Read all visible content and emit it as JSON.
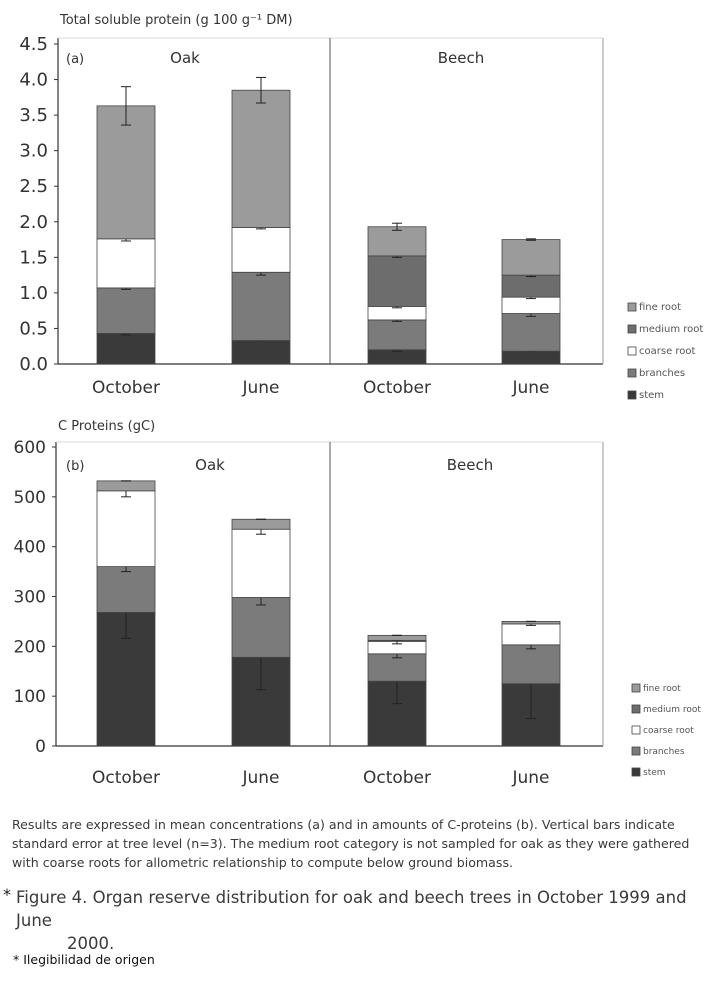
{
  "organs": {
    "fine_root": {
      "label": "fine root",
      "color": "#9b9b9b"
    },
    "medium_root": {
      "label": "medium root",
      "color": "#6d6d6d"
    },
    "coarse_root": {
      "label": "coarse root",
      "color": "#ffffff"
    },
    "branches": {
      "label": "branches",
      "color": "#7b7b7b"
    },
    "stem": {
      "label": "stem",
      "color": "#3a3a3a"
    }
  },
  "chart_data": [
    {
      "id": "a",
      "type": "bar",
      "stacked": true,
      "panel_label": "(a)",
      "title": "Total soluble protein (g 100 g⁻¹ DM)",
      "ylabel": "Total soluble protein (g 100 g⁻¹ DM)",
      "ylim": [
        0,
        4.5
      ],
      "yticks": [
        "0.0",
        "0.5",
        "1.0",
        "1.5",
        "2.0",
        "2.5",
        "3.0",
        "3.5",
        "4.0",
        "4.5"
      ],
      "groups": [
        {
          "species": "Oak",
          "categories": [
            "October",
            "June"
          ]
        },
        {
          "species": "Beech",
          "categories": [
            "October",
            "June"
          ]
        }
      ],
      "categories": [
        "Oak October",
        "Oak June",
        "Beech October",
        "Beech June"
      ],
      "category_labels": [
        "October",
        "June",
        "October",
        "June"
      ],
      "series": [
        {
          "name": "stem",
          "values": [
            0.43,
            0.33,
            0.2,
            0.18
          ],
          "errors": [
            0.02,
            0.0,
            0.02,
            0.0
          ]
        },
        {
          "name": "branches",
          "values": [
            0.64,
            0.96,
            0.42,
            0.53
          ],
          "errors": [
            0.02,
            0.04,
            0.02,
            0.04
          ]
        },
        {
          "name": "coarse root",
          "values": [
            0.69,
            0.63,
            0.19,
            0.23
          ],
          "errors": [
            0.03,
            0.02,
            0.02,
            0.02
          ]
        },
        {
          "name": "medium root",
          "values": [
            0.0,
            0.0,
            0.71,
            0.31
          ],
          "errors": [
            0.0,
            0.0,
            0.02,
            0.02
          ]
        },
        {
          "name": "fine root",
          "values": [
            1.87,
            1.93,
            0.41,
            0.5
          ],
          "errors": [
            0.27,
            0.18,
            0.05,
            0.01
          ]
        }
      ],
      "legend": [
        "fine root",
        "medium root",
        "coarse root",
        "branches",
        "stem"
      ],
      "legend_position": "right"
    },
    {
      "id": "b",
      "type": "bar",
      "stacked": true,
      "panel_label": "(b)",
      "title": "C Proteins (gC)",
      "ylabel": "C Proteins (gC)",
      "ylim": [
        0,
        600
      ],
      "yticks": [
        "0",
        "100",
        "200",
        "300",
        "400",
        "500",
        "600"
      ],
      "groups": [
        {
          "species": "Oak",
          "categories": [
            "October",
            "June"
          ]
        },
        {
          "species": "Beech",
          "categories": [
            "October",
            "June"
          ]
        }
      ],
      "categories": [
        "Oak October",
        "Oak June",
        "Beech October",
        "Beech June"
      ],
      "category_labels": [
        "October",
        "June",
        "October",
        "June"
      ],
      "series": [
        {
          "name": "stem",
          "values": [
            268,
            178,
            130,
            125
          ],
          "errors": [
            52,
            65,
            45,
            70
          ]
        },
        {
          "name": "branches",
          "values": [
            92,
            120,
            55,
            78
          ],
          "errors": [
            10,
            15,
            8,
            8
          ]
        },
        {
          "name": "coarse root",
          "values": [
            152,
            137,
            25,
            42
          ],
          "errors": [
            12,
            10,
            5,
            3
          ]
        },
        {
          "name": "medium root",
          "values": [
            0,
            0,
            2,
            0
          ],
          "errors": [
            0,
            0,
            0,
            0
          ]
        },
        {
          "name": "fine root",
          "values": [
            20,
            20,
            10,
            5
          ],
          "errors": [
            0,
            0,
            0,
            0
          ]
        }
      ],
      "legend": [
        "fine root",
        "medium root",
        "coarse root",
        "branches",
        "stem"
      ],
      "legend_position": "right"
    }
  ],
  "caption": "Results are expressed in mean concentrations (a) and in amounts of C-proteins (b). Vertical bars indicate standard error at tree level (n=3). The medium root category is not sampled for oak as they were gathered with coarse roots for allometric relationship to compute below ground biomass.",
  "figure_marker": "*",
  "figure_title_line1": "Figure 4. Organ reserve distribution for oak and beech trees in October 1999 and June",
  "figure_title_line2": "2000.",
  "footnote": "* Ilegibilidad de origen"
}
